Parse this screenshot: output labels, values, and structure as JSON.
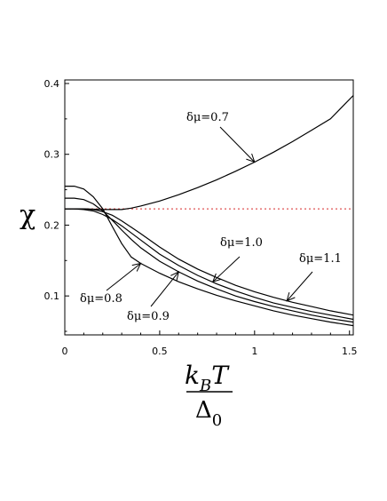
{
  "chart_data": {
    "type": "line",
    "ylabel": "χ",
    "xlabel": {
      "numerator": "k",
      "numerator_sub": "B",
      "numerator_tail": "T",
      "denominator": "Δ",
      "denominator_sub": "0"
    },
    "xlim": [
      0,
      1.52
    ],
    "ylim": [
      0.045,
      0.405
    ],
    "xticks": [
      "0",
      "0.5",
      "1",
      "1.5"
    ],
    "yticks": [
      "0.1",
      "0.2",
      "0.3",
      "0.4"
    ],
    "xtick_values": [
      0,
      0.5,
      1,
      1.5
    ],
    "ytick_values": [
      0.1,
      0.2,
      0.3,
      0.4
    ],
    "reference_line": {
      "y": 0.223,
      "style": "dotted",
      "color": "#d62728"
    },
    "series": [
      {
        "name": "δμ=0.7",
        "x": [
          0.0,
          0.1,
          0.2,
          0.3,
          0.35,
          0.4,
          0.5,
          0.6,
          0.7,
          0.8,
          0.9,
          1.0,
          1.1,
          1.2,
          1.3,
          1.4,
          1.52
        ],
        "y": [
          0.223,
          0.223,
          0.222,
          0.222,
          0.224,
          0.227,
          0.234,
          0.243,
          0.253,
          0.264,
          0.276,
          0.289,
          0.303,
          0.318,
          0.334,
          0.35,
          0.383
        ]
      },
      {
        "name": "δμ=0.8",
        "x": [
          0.0,
          0.05,
          0.1,
          0.15,
          0.2,
          0.25,
          0.3,
          0.35,
          0.4,
          0.5,
          0.6,
          0.7,
          0.8,
          0.9,
          1.0,
          1.1,
          1.2,
          1.3,
          1.4,
          1.52
        ],
        "y": [
          0.255,
          0.255,
          0.251,
          0.24,
          0.223,
          0.198,
          0.174,
          0.155,
          0.146,
          0.132,
          0.12,
          0.11,
          0.101,
          0.093,
          0.086,
          0.079,
          0.073,
          0.068,
          0.063,
          0.058
        ]
      },
      {
        "name": "δμ=0.9",
        "x": [
          0.0,
          0.05,
          0.1,
          0.15,
          0.2,
          0.25,
          0.3,
          0.35,
          0.4,
          0.5,
          0.6,
          0.7,
          0.8,
          0.9,
          1.0,
          1.1,
          1.2,
          1.3,
          1.4,
          1.52
        ],
        "y": [
          0.238,
          0.238,
          0.236,
          0.23,
          0.22,
          0.207,
          0.193,
          0.18,
          0.168,
          0.149,
          0.134,
          0.121,
          0.11,
          0.1,
          0.092,
          0.085,
          0.079,
          0.073,
          0.068,
          0.063
        ]
      },
      {
        "name": "δμ=1.0",
        "x": [
          0.0,
          0.05,
          0.1,
          0.15,
          0.2,
          0.25,
          0.3,
          0.35,
          0.4,
          0.5,
          0.6,
          0.7,
          0.8,
          0.9,
          1.0,
          1.1,
          1.2,
          1.3,
          1.4,
          1.52
        ],
        "y": [
          0.223,
          0.223,
          0.222,
          0.22,
          0.215,
          0.208,
          0.199,
          0.189,
          0.179,
          0.159,
          0.143,
          0.129,
          0.117,
          0.107,
          0.098,
          0.09,
          0.084,
          0.078,
          0.073,
          0.067
        ]
      },
      {
        "name": "δμ=1.1",
        "x": [
          0.0,
          0.05,
          0.1,
          0.15,
          0.2,
          0.25,
          0.3,
          0.35,
          0.4,
          0.5,
          0.6,
          0.7,
          0.8,
          0.9,
          1.0,
          1.1,
          1.2,
          1.3,
          1.4,
          1.52
        ],
        "y": [
          0.223,
          0.223,
          0.223,
          0.222,
          0.219,
          0.214,
          0.206,
          0.197,
          0.188,
          0.169,
          0.152,
          0.138,
          0.126,
          0.115,
          0.106,
          0.098,
          0.091,
          0.085,
          0.079,
          0.073
        ]
      }
    ],
    "annotations": [
      {
        "text": "δμ=0.7",
        "series": "δμ=0.7",
        "arrow_to": [
          1.0,
          0.289
        ]
      },
      {
        "text": "δμ=0.8",
        "series": "δμ=0.8",
        "arrow_to": [
          0.4,
          0.146
        ]
      },
      {
        "text": "δμ=0.9",
        "series": "δμ=0.9",
        "arrow_to": [
          0.6,
          0.134
        ]
      },
      {
        "text": "δμ=1.0",
        "series": "δμ=1.0",
        "arrow_to": [
          0.78,
          0.12
        ]
      },
      {
        "text": "δμ=1.1",
        "series": "δμ=1.1",
        "arrow_to": [
          1.17,
          0.093
        ]
      }
    ],
    "grid": false,
    "legend": "none"
  }
}
